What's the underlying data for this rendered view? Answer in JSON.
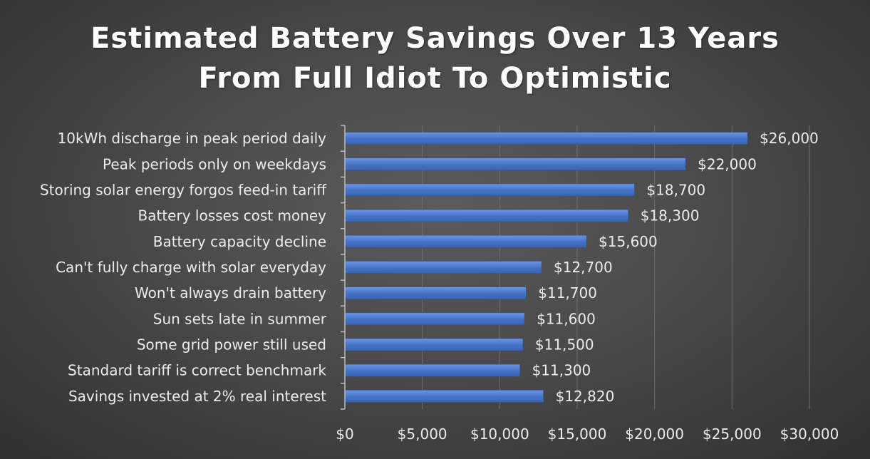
{
  "chart_data": {
    "type": "bar",
    "orientation": "horizontal",
    "title": "Estimated Battery Savings Over 13 Years",
    "subtitle": "From Full Idiot To Optimistic",
    "xlabel": "",
    "ylabel": "",
    "categories": [
      "10kWh discharge in peak period daily",
      "Peak periods only on weekdays",
      "Storing solar energy forgos feed-in tariff",
      "Battery losses cost money",
      "Battery capacity decline",
      "Can't fully charge with solar everyday",
      "Won't always drain battery",
      "Sun sets late in summer",
      "Some grid power still used",
      "Standard tariff is correct benchmark",
      "Savings invested at 2% real interest"
    ],
    "values": [
      26000,
      22000,
      18700,
      18300,
      15600,
      12700,
      11700,
      11600,
      11500,
      11300,
      12820
    ],
    "data_labels": [
      "$26,000",
      "$22,000",
      "$18,700",
      "$18,300",
      "$15,600",
      "$12,700",
      "$11,700",
      "$11,600",
      "$11,500",
      "$11,300",
      "$12,820"
    ],
    "xlim": [
      0,
      30000
    ],
    "x_ticks": [
      0,
      5000,
      10000,
      15000,
      20000,
      25000,
      30000
    ],
    "x_tick_labels": [
      "$0",
      "$5,000",
      "$10,000",
      "$15,000",
      "$20,000",
      "$25,000",
      "$30,000"
    ],
    "grid": true,
    "legend": "none",
    "colors": {
      "bar": "#4472c4",
      "bar_highlight": "#5b8be0",
      "grid": "#6e6e6e",
      "text": "#ececec",
      "background": "#4a4a4a"
    }
  }
}
